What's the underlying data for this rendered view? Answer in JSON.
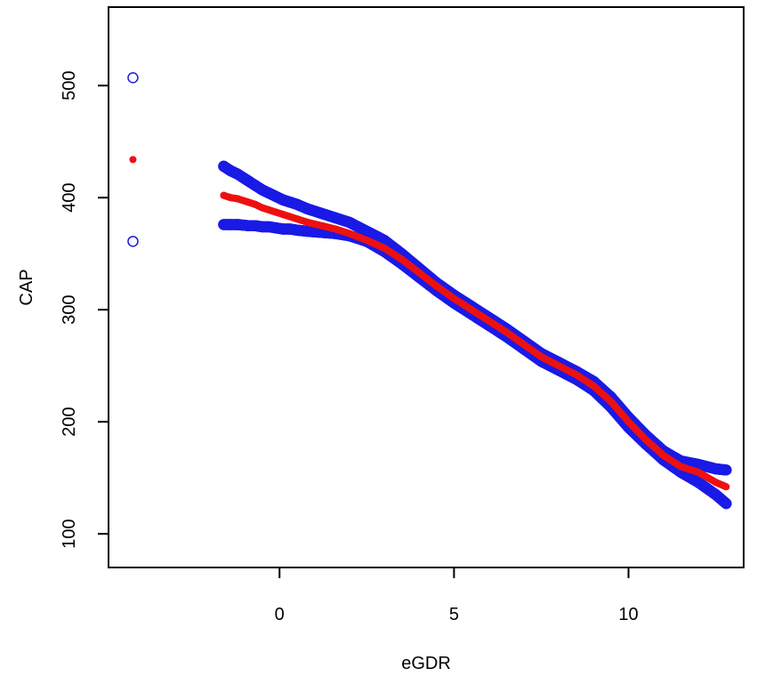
{
  "chart_data": {
    "type": "scatter",
    "xlabel": "eGDR",
    "ylabel": "CAP",
    "xlim": [
      -4.9,
      13.3
    ],
    "ylim": [
      70,
      570
    ],
    "x_ticks": [
      0,
      5,
      10
    ],
    "y_ticks": [
      100,
      200,
      300,
      400,
      500
    ],
    "grid": false,
    "legend": "none",
    "colors": {
      "fit": "#ee1111",
      "ci": "#1a1ae6"
    },
    "series": [
      {
        "role": "fitted",
        "marker": "filled-circle",
        "x": [
          -4.2,
          -1.6,
          -1.4,
          -1.2,
          -0.9,
          -0.7,
          -0.5,
          -0.3,
          -0.1,
          0.1,
          0.3,
          0.5,
          0.8,
          1.2,
          1.6,
          2.0,
          2.5,
          3.0,
          3.5,
          4.0,
          4.5,
          5.0,
          5.5,
          6.0,
          6.5,
          7.0,
          7.5,
          8.0,
          8.5,
          9.0,
          9.5,
          10.0,
          10.5,
          11.0,
          11.5,
          12.0,
          12.5,
          12.8
        ],
        "y": [
          434,
          402,
          400,
          399,
          396,
          394,
          391,
          389,
          387,
          385,
          383,
          381,
          378,
          375,
          372,
          368,
          362,
          355,
          345,
          333,
          321,
          310,
          300,
          290,
          280,
          269,
          258,
          250,
          242,
          232,
          218,
          200,
          184,
          170,
          160,
          155,
          146,
          142
        ]
      },
      {
        "role": "upper-ci",
        "marker": "open-circle",
        "x": [
          -4.2,
          -1.6,
          -1.4,
          -1.2,
          -0.9,
          -0.7,
          -0.5,
          -0.3,
          -0.1,
          0.1,
          0.3,
          0.5,
          0.8,
          1.2,
          1.6,
          2.0,
          2.5,
          3.0,
          3.5,
          4.0,
          4.5,
          5.0,
          5.5,
          6.0,
          6.5,
          7.0,
          7.5,
          8.0,
          8.5,
          9.0,
          9.5,
          10.0,
          10.5,
          11.0,
          11.5,
          12.0,
          12.5,
          12.8
        ],
        "y": [
          507,
          428,
          424,
          421,
          415,
          411,
          407,
          404,
          401,
          398,
          396,
          394,
          390,
          386,
          382,
          378,
          370,
          362,
          350,
          337,
          324,
          313,
          303,
          293,
          283,
          272,
          261,
          253,
          245,
          236,
          222,
          204,
          188,
          174,
          165,
          162,
          158,
          157
        ]
      },
      {
        "role": "lower-ci",
        "marker": "open-circle",
        "x": [
          -4.2,
          -1.6,
          -1.4,
          -1.2,
          -0.9,
          -0.7,
          -0.5,
          -0.3,
          -0.1,
          0.1,
          0.3,
          0.5,
          0.8,
          1.2,
          1.6,
          2.0,
          2.5,
          3.0,
          3.5,
          4.0,
          4.5,
          5.0,
          5.5,
          6.0,
          6.5,
          7.0,
          7.5,
          8.0,
          8.5,
          9.0,
          9.5,
          10.0,
          10.5,
          11.0,
          11.5,
          12.0,
          12.5,
          12.8
        ],
        "y": [
          361,
          376,
          376,
          376,
          375,
          375,
          374,
          374,
          373,
          372,
          372,
          371,
          370,
          369,
          368,
          366,
          361,
          352,
          341,
          329,
          317,
          306,
          296,
          286,
          276,
          265,
          254,
          246,
          238,
          228,
          213,
          195,
          180,
          166,
          155,
          146,
          135,
          127
        ]
      }
    ]
  }
}
